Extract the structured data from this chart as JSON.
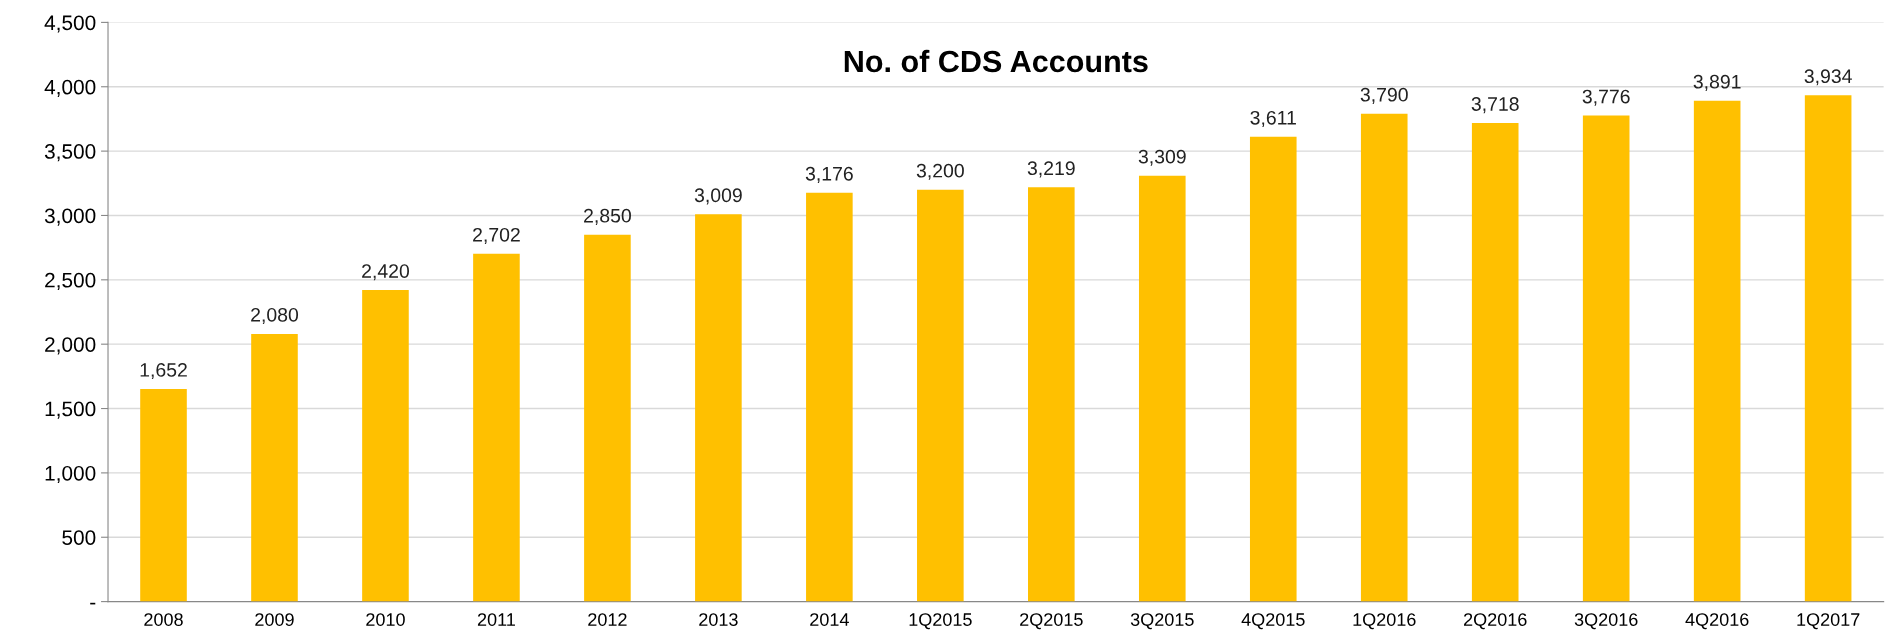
{
  "chart_data": {
    "type": "bar",
    "title": "No. of CDS Accounts",
    "categories": [
      "2008",
      "2009",
      "2010",
      "2011",
      "2012",
      "2013",
      "2014",
      "1Q2015",
      "2Q2015",
      "3Q2015",
      "4Q2015",
      "1Q2016",
      "2Q2016",
      "3Q2016",
      "4Q2016",
      "1Q2017"
    ],
    "values": [
      1652,
      2080,
      2420,
      2702,
      2850,
      3009,
      3176,
      3200,
      3219,
      3309,
      3611,
      3790,
      3718,
      3776,
      3891,
      3934
    ],
    "value_labels": [
      "1,652",
      "2,080",
      "2,420",
      "2,702",
      "2,850",
      "3,009",
      "3,176",
      "3,200",
      "3,219",
      "3,309",
      "3,611",
      "3,790",
      "3,718",
      "3,776",
      "3,891",
      "3,934"
    ],
    "color": "#ffc000",
    "ylim": [
      0,
      4500
    ],
    "yticks": [
      {
        "value": 0,
        "label": "-"
      },
      {
        "value": 500,
        "label": "500"
      },
      {
        "value": 1000,
        "label": "1,000"
      },
      {
        "value": 1500,
        "label": "1,500"
      },
      {
        "value": 2000,
        "label": "2,000"
      },
      {
        "value": 2500,
        "label": "2,500"
      },
      {
        "value": 3000,
        "label": "3,000"
      },
      {
        "value": 3500,
        "label": "3,500"
      },
      {
        "value": 4000,
        "label": "4,000"
      },
      {
        "value": 4500,
        "label": "4,500"
      }
    ],
    "grid": "y"
  }
}
